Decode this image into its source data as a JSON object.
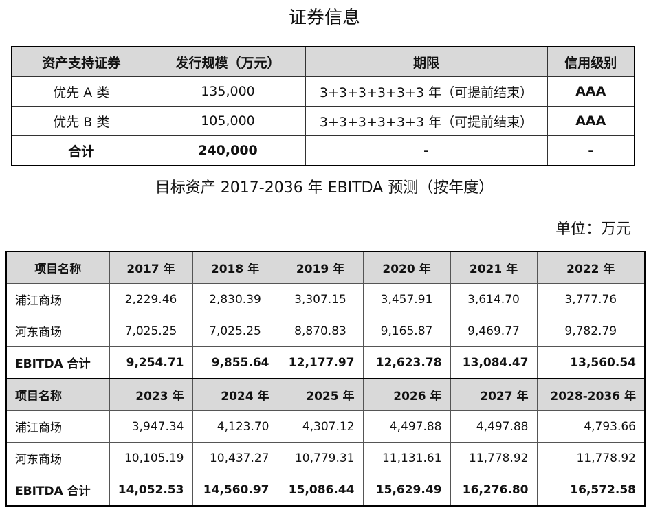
{
  "title1": "证券信息",
  "securities": {
    "headers": [
      "资产支持证券",
      "发行规模（万元）",
      "期限",
      "信用级别"
    ],
    "rows": [
      [
        "优先 A 类",
        "135,000",
        "3+3+3+3+3+3 年（可提前结束）",
        "AAA"
      ],
      [
        "优先 B 类",
        "105,000",
        "3+3+3+3+3+3 年（可提前结束）",
        "AAA"
      ],
      [
        "合计",
        "240,000",
        "-",
        "-"
      ]
    ]
  },
  "title2": "目标资产 2017-2036 年 EBITDA 预测（按年度）",
  "unit": "单位：万元",
  "ebitda": {
    "blocks": [
      {
        "headers": [
          "项目名称",
          "2017 年",
          "2018 年",
          "2019 年",
          "2020 年",
          "2021 年",
          "2022 年"
        ],
        "rows": [
          [
            "浦江商场",
            "2,229.46",
            "2,830.39",
            "3,307.15",
            "3,457.91",
            "3,614.70",
            "3,777.76"
          ],
          [
            "河东商场",
            "7,025.25",
            "7,025.25",
            "8,870.83",
            "9,165.87",
            "9,469.77",
            "9,782.79"
          ],
          [
            "EBITDA 合计",
            "9,254.71",
            "9,855.64",
            "12,177.97",
            "12,623.78",
            "13,084.47",
            "13,560.54"
          ]
        ]
      },
      {
        "headers": [
          "项目名称",
          "2023 年",
          "2024 年",
          "2025 年",
          "2026 年",
          "2027 年",
          "2028-2036 年"
        ],
        "rows": [
          [
            "浦江商场",
            "3,947.34",
            "4,123.70",
            "4,307.12",
            "4,497.88",
            "4,497.88",
            "4,793.66"
          ],
          [
            "河东商场",
            "10,105.19",
            "10,437.27",
            "10,779.31",
            "11,131.61",
            "11,778.92",
            "11,778.92"
          ],
          [
            "EBITDA 合计",
            "14,052.53",
            "14,560.97",
            "15,086.44",
            "15,629.49",
            "16,276.80",
            "16,572.58"
          ]
        ]
      }
    ]
  }
}
